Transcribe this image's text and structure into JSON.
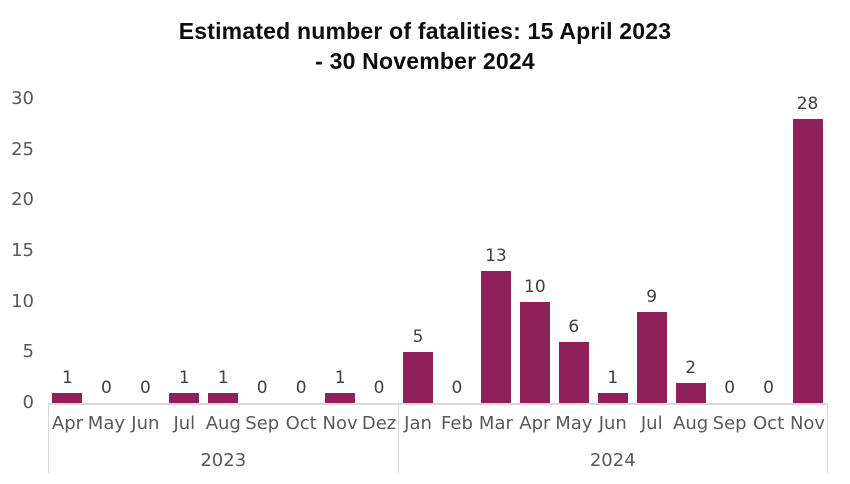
{
  "chart_data": {
    "type": "bar",
    "title": "Estimated number of fatalities: 15 April 2023 - 30 November 2024",
    "title_lines": [
      "Estimated number of fatalities: 15 April 2023",
      "- 30 November 2024"
    ],
    "xlabel": "",
    "ylabel": "",
    "ylim": [
      0,
      30
    ],
    "yticks": [
      0,
      5,
      10,
      15,
      20,
      25,
      30
    ],
    "grid": false,
    "legend": "none",
    "bar_color": "#8E2159",
    "axis_line_color": "#D9D9D9",
    "value_label_color": "#404040",
    "tick_label_color": "#595959",
    "categories": [
      "Apr 2023",
      "May 2023",
      "Jun 2023",
      "Jul 2023",
      "Aug 2023",
      "Sep 2023",
      "Oct 2023",
      "Nov 2023",
      "Dez 2023",
      "Jan 2024",
      "Feb 2024",
      "Mar 2024",
      "Apr 2024",
      "May 2024",
      "Jun 2024",
      "Jul 2024",
      "Aug 2024",
      "Sep 2024",
      "Oct 2024",
      "Nov 2024"
    ],
    "values": [
      1,
      0,
      0,
      1,
      1,
      0,
      0,
      1,
      0,
      5,
      0,
      13,
      10,
      6,
      1,
      9,
      2,
      0,
      0,
      28
    ],
    "groups": [
      {
        "year": "2023",
        "months": [
          "Apr",
          "May",
          "Jun",
          "Jul",
          "Aug",
          "Sep",
          "Oct",
          "Nov",
          "Dez"
        ],
        "values": [
          1,
          0,
          0,
          1,
          1,
          0,
          0,
          1,
          0
        ]
      },
      {
        "year": "2024",
        "months": [
          "Jan",
          "Feb",
          "Mar",
          "Apr",
          "May",
          "Jun",
          "Jul",
          "Aug",
          "Sep",
          "Oct",
          "Nov"
        ],
        "values": [
          5,
          0,
          13,
          10,
          6,
          1,
          9,
          2,
          0,
          0,
          28
        ]
      }
    ]
  }
}
